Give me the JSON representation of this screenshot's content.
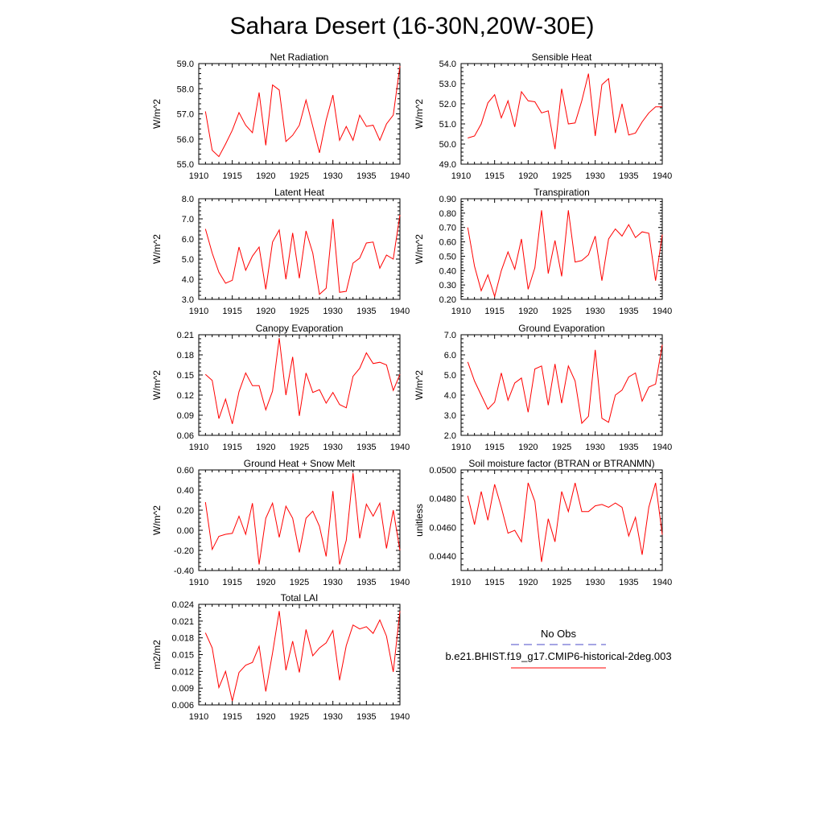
{
  "figure": {
    "title": "Sahara Desert (16-30N,20W-30E)"
  },
  "legend": {
    "entries": [
      {
        "label": "No Obs",
        "color": "#4b4bc8",
        "dash": true
      },
      {
        "label": "b.e21.BHIST.f19_g17.CMIP6-historical-2deg.003",
        "color": "#ff0000",
        "dash": false
      }
    ]
  },
  "colors": {
    "series": "#ff0000"
  },
  "chart_data": [
    {
      "type": "line",
      "title": "Net Radiation",
      "ylabel": "W/m^2",
      "xlim": [
        1910,
        1940
      ],
      "ylim": [
        55.0,
        59.0
      ],
      "xticks": [
        "1910",
        "1915",
        "1920",
        "1925",
        "1930",
        "1935",
        "1940"
      ],
      "yticks": [
        "55.0",
        "56.0",
        "57.0",
        "58.0",
        "59.0"
      ],
      "x": [
        1911,
        1912,
        1913,
        1914,
        1915,
        1916,
        1917,
        1918,
        1919,
        1920,
        1921,
        1922,
        1923,
        1924,
        1925,
        1926,
        1927,
        1928,
        1929,
        1930,
        1931,
        1932,
        1933,
        1934,
        1935,
        1936,
        1937,
        1938,
        1939,
        1940
      ],
      "y": [
        57.1,
        55.55,
        55.3,
        55.8,
        56.35,
        57.05,
        56.55,
        56.25,
        57.85,
        55.75,
        58.15,
        57.95,
        55.9,
        56.15,
        56.55,
        57.55,
        56.5,
        55.45,
        56.75,
        57.75,
        55.95,
        56.5,
        55.95,
        56.95,
        56.5,
        56.55,
        55.95,
        56.6,
        56.95,
        58.9
      ]
    },
    {
      "type": "line",
      "title": "Sensible Heat",
      "ylabel": "W/m^2",
      "xlim": [
        1910,
        1940
      ],
      "ylim": [
        49.0,
        54.0
      ],
      "xticks": [
        "1910",
        "1915",
        "1920",
        "1925",
        "1930",
        "1935",
        "1940"
      ],
      "yticks": [
        "49.0",
        "50.0",
        "51.0",
        "52.0",
        "53.0",
        "54.0"
      ],
      "x": [
        1911,
        1912,
        1913,
        1914,
        1915,
        1916,
        1917,
        1918,
        1919,
        1920,
        1921,
        1922,
        1923,
        1924,
        1925,
        1926,
        1927,
        1928,
        1929,
        1930,
        1931,
        1932,
        1933,
        1934,
        1935,
        1936,
        1937,
        1938,
        1939,
        1940
      ],
      "y": [
        50.3,
        50.4,
        51.0,
        52.05,
        52.45,
        51.3,
        52.15,
        50.85,
        52.6,
        52.15,
        52.1,
        51.55,
        51.65,
        49.75,
        52.75,
        51.0,
        51.05,
        52.15,
        53.5,
        50.4,
        52.95,
        53.25,
        50.55,
        52.0,
        50.45,
        50.55,
        51.1,
        51.55,
        51.85,
        51.85
      ]
    },
    {
      "type": "line",
      "title": "Latent Heat",
      "ylabel": "W/m^2",
      "xlim": [
        1910,
        1940
      ],
      "ylim": [
        3.0,
        8.0
      ],
      "xticks": [
        "1910",
        "1915",
        "1920",
        "1925",
        "1930",
        "1935",
        "1940"
      ],
      "yticks": [
        "3.0",
        "4.0",
        "5.0",
        "6.0",
        "7.0",
        "8.0"
      ],
      "x": [
        1911,
        1912,
        1913,
        1914,
        1915,
        1916,
        1917,
        1918,
        1919,
        1920,
        1921,
        1922,
        1923,
        1924,
        1925,
        1926,
        1927,
        1928,
        1929,
        1930,
        1931,
        1932,
        1933,
        1934,
        1935,
        1936,
        1937,
        1938,
        1939,
        1940
      ],
      "y": [
        6.5,
        5.3,
        4.35,
        3.8,
        3.95,
        5.6,
        4.45,
        5.15,
        5.6,
        3.5,
        5.85,
        6.45,
        4.0,
        6.3,
        4.05,
        6.4,
        5.3,
        3.25,
        3.55,
        7.0,
        3.35,
        3.4,
        4.8,
        5.05,
        5.8,
        5.85,
        4.55,
        5.2,
        5.0,
        7.2
      ]
    },
    {
      "type": "line",
      "title": "Transpiration",
      "ylabel": "W/m^2",
      "xlim": [
        1910,
        1940
      ],
      "ylim": [
        0.2,
        0.9
      ],
      "xticks": [
        "1910",
        "1915",
        "1920",
        "1925",
        "1930",
        "1935",
        "1940"
      ],
      "yticks": [
        "0.20",
        "0.30",
        "0.40",
        "0.50",
        "0.60",
        "0.70",
        "0.80",
        "0.90"
      ],
      "x": [
        1911,
        1912,
        1913,
        1914,
        1915,
        1916,
        1917,
        1918,
        1919,
        1920,
        1921,
        1922,
        1923,
        1924,
        1925,
        1926,
        1927,
        1928,
        1929,
        1930,
        1931,
        1932,
        1933,
        1934,
        1935,
        1936,
        1937,
        1938,
        1939,
        1940
      ],
      "y": [
        0.7,
        0.43,
        0.26,
        0.37,
        0.22,
        0.4,
        0.53,
        0.41,
        0.62,
        0.27,
        0.42,
        0.82,
        0.38,
        0.61,
        0.36,
        0.82,
        0.46,
        0.47,
        0.51,
        0.64,
        0.33,
        0.62,
        0.69,
        0.64,
        0.72,
        0.63,
        0.67,
        0.66,
        0.33,
        0.65
      ]
    },
    {
      "type": "line",
      "title": "Canopy Evaporation",
      "ylabel": "W/m^2",
      "xlim": [
        1910,
        1940
      ],
      "ylim": [
        0.06,
        0.21
      ],
      "xticks": [
        "1910",
        "1915",
        "1920",
        "1925",
        "1930",
        "1935",
        "1940"
      ],
      "yticks": [
        "0.06",
        "0.09",
        "0.12",
        "0.15",
        "0.18",
        "0.21"
      ],
      "x": [
        1911,
        1912,
        1913,
        1914,
        1915,
        1916,
        1917,
        1918,
        1919,
        1920,
        1921,
        1922,
        1923,
        1924,
        1925,
        1926,
        1927,
        1928,
        1929,
        1930,
        1931,
        1932,
        1933,
        1934,
        1935,
        1936,
        1937,
        1938,
        1939,
        1940
      ],
      "y": [
        0.151,
        0.142,
        0.085,
        0.114,
        0.077,
        0.125,
        0.153,
        0.134,
        0.134,
        0.098,
        0.126,
        0.205,
        0.12,
        0.177,
        0.089,
        0.153,
        0.124,
        0.128,
        0.108,
        0.124,
        0.106,
        0.101,
        0.148,
        0.16,
        0.183,
        0.167,
        0.169,
        0.165,
        0.127,
        0.151
      ]
    },
    {
      "type": "line",
      "title": "Ground Evaporation",
      "ylabel": "W/m^2",
      "xlim": [
        1910,
        1940
      ],
      "ylim": [
        2.0,
        7.0
      ],
      "xticks": [
        "1910",
        "1915",
        "1920",
        "1925",
        "1930",
        "1935",
        "1940"
      ],
      "yticks": [
        "2.0",
        "3.0",
        "4.0",
        "5.0",
        "6.0",
        "7.0"
      ],
      "x": [
        1911,
        1912,
        1913,
        1914,
        1915,
        1916,
        1917,
        1918,
        1919,
        1920,
        1921,
        1922,
        1923,
        1924,
        1925,
        1926,
        1927,
        1928,
        1929,
        1930,
        1931,
        1932,
        1933,
        1934,
        1935,
        1936,
        1937,
        1938,
        1939,
        1940
      ],
      "y": [
        5.65,
        4.7,
        4.0,
        3.3,
        3.65,
        5.1,
        3.75,
        4.6,
        4.85,
        3.15,
        5.3,
        5.45,
        3.5,
        5.55,
        3.6,
        5.45,
        4.7,
        2.6,
        2.95,
        6.25,
        2.85,
        2.65,
        4.0,
        4.25,
        4.9,
        5.1,
        3.7,
        4.4,
        4.55,
        6.5
      ]
    },
    {
      "type": "line",
      "title": "Ground Heat + Snow Melt",
      "ylabel": "W/m^2",
      "xlim": [
        1910,
        1940
      ],
      "ylim": [
        -0.4,
        0.6
      ],
      "xticks": [
        "1910",
        "1915",
        "1920",
        "1925",
        "1930",
        "1935",
        "1940"
      ],
      "yticks": [
        "-0.40",
        "-0.20",
        "0.00",
        "0.20",
        "0.40",
        "0.60"
      ],
      "x": [
        1911,
        1912,
        1913,
        1914,
        1915,
        1916,
        1917,
        1918,
        1919,
        1920,
        1921,
        1922,
        1923,
        1924,
        1925,
        1926,
        1927,
        1928,
        1929,
        1930,
        1931,
        1932,
        1933,
        1934,
        1935,
        1936,
        1937,
        1938,
        1939,
        1940
      ],
      "y": [
        0.28,
        -0.19,
        -0.06,
        -0.04,
        -0.03,
        0.14,
        -0.04,
        0.27,
        -0.34,
        0.12,
        0.27,
        -0.07,
        0.24,
        0.12,
        -0.22,
        0.12,
        0.19,
        0.04,
        -0.26,
        0.39,
        -0.34,
        -0.1,
        0.57,
        -0.08,
        0.26,
        0.14,
        0.27,
        -0.18,
        0.2,
        -0.2
      ]
    },
    {
      "type": "line",
      "title": "Soil moisture factor (BTRAN or BTRANMN)",
      "ylabel": "unitless",
      "xlim": [
        1910,
        1940
      ],
      "ylim": [
        0.043,
        0.05
      ],
      "xticks": [
        "1910",
        "1915",
        "1920",
        "1925",
        "1930",
        "1935",
        "1940"
      ],
      "yticks": [
        "0.0440",
        "0.0460",
        "0.0480",
        "0.0500"
      ],
      "x": [
        1911,
        1912,
        1913,
        1914,
        1915,
        1916,
        1917,
        1918,
        1919,
        1920,
        1921,
        1922,
        1923,
        1924,
        1925,
        1926,
        1927,
        1928,
        1929,
        1930,
        1931,
        1932,
        1933,
        1934,
        1935,
        1936,
        1937,
        1938,
        1939,
        1940
      ],
      "y": [
        0.0482,
        0.0462,
        0.0485,
        0.0465,
        0.049,
        0.0474,
        0.0456,
        0.0458,
        0.045,
        0.0491,
        0.0478,
        0.0436,
        0.0466,
        0.045,
        0.0485,
        0.0471,
        0.0491,
        0.0471,
        0.0471,
        0.0475,
        0.0476,
        0.0474,
        0.0477,
        0.0474,
        0.0454,
        0.0467,
        0.0441,
        0.0474,
        0.0491,
        0.0455
      ]
    },
    {
      "type": "line",
      "title": "Total LAI",
      "ylabel": "m2/m2",
      "xlim": [
        1910,
        1940
      ],
      "ylim": [
        0.006,
        0.024
      ],
      "xticks": [
        "1910",
        "1915",
        "1920",
        "1925",
        "1930",
        "1935",
        "1940"
      ],
      "yticks": [
        "0.006",
        "0.009",
        "0.012",
        "0.015",
        "0.018",
        "0.021",
        "0.024"
      ],
      "x": [
        1911,
        1912,
        1913,
        1914,
        1915,
        1916,
        1917,
        1918,
        1919,
        1920,
        1921,
        1922,
        1923,
        1924,
        1925,
        1926,
        1927,
        1928,
        1929,
        1930,
        1931,
        1932,
        1933,
        1934,
        1935,
        1936,
        1937,
        1938,
        1939,
        1940
      ],
      "y": [
        0.0189,
        0.0162,
        0.0091,
        0.012,
        0.0067,
        0.0118,
        0.0131,
        0.0136,
        0.0165,
        0.0084,
        0.0153,
        0.0228,
        0.0122,
        0.0174,
        0.0118,
        0.0195,
        0.0148,
        0.0162,
        0.0171,
        0.0193,
        0.0104,
        0.0166,
        0.0203,
        0.0196,
        0.02,
        0.0188,
        0.0212,
        0.0183,
        0.0119,
        0.0228
      ]
    }
  ]
}
